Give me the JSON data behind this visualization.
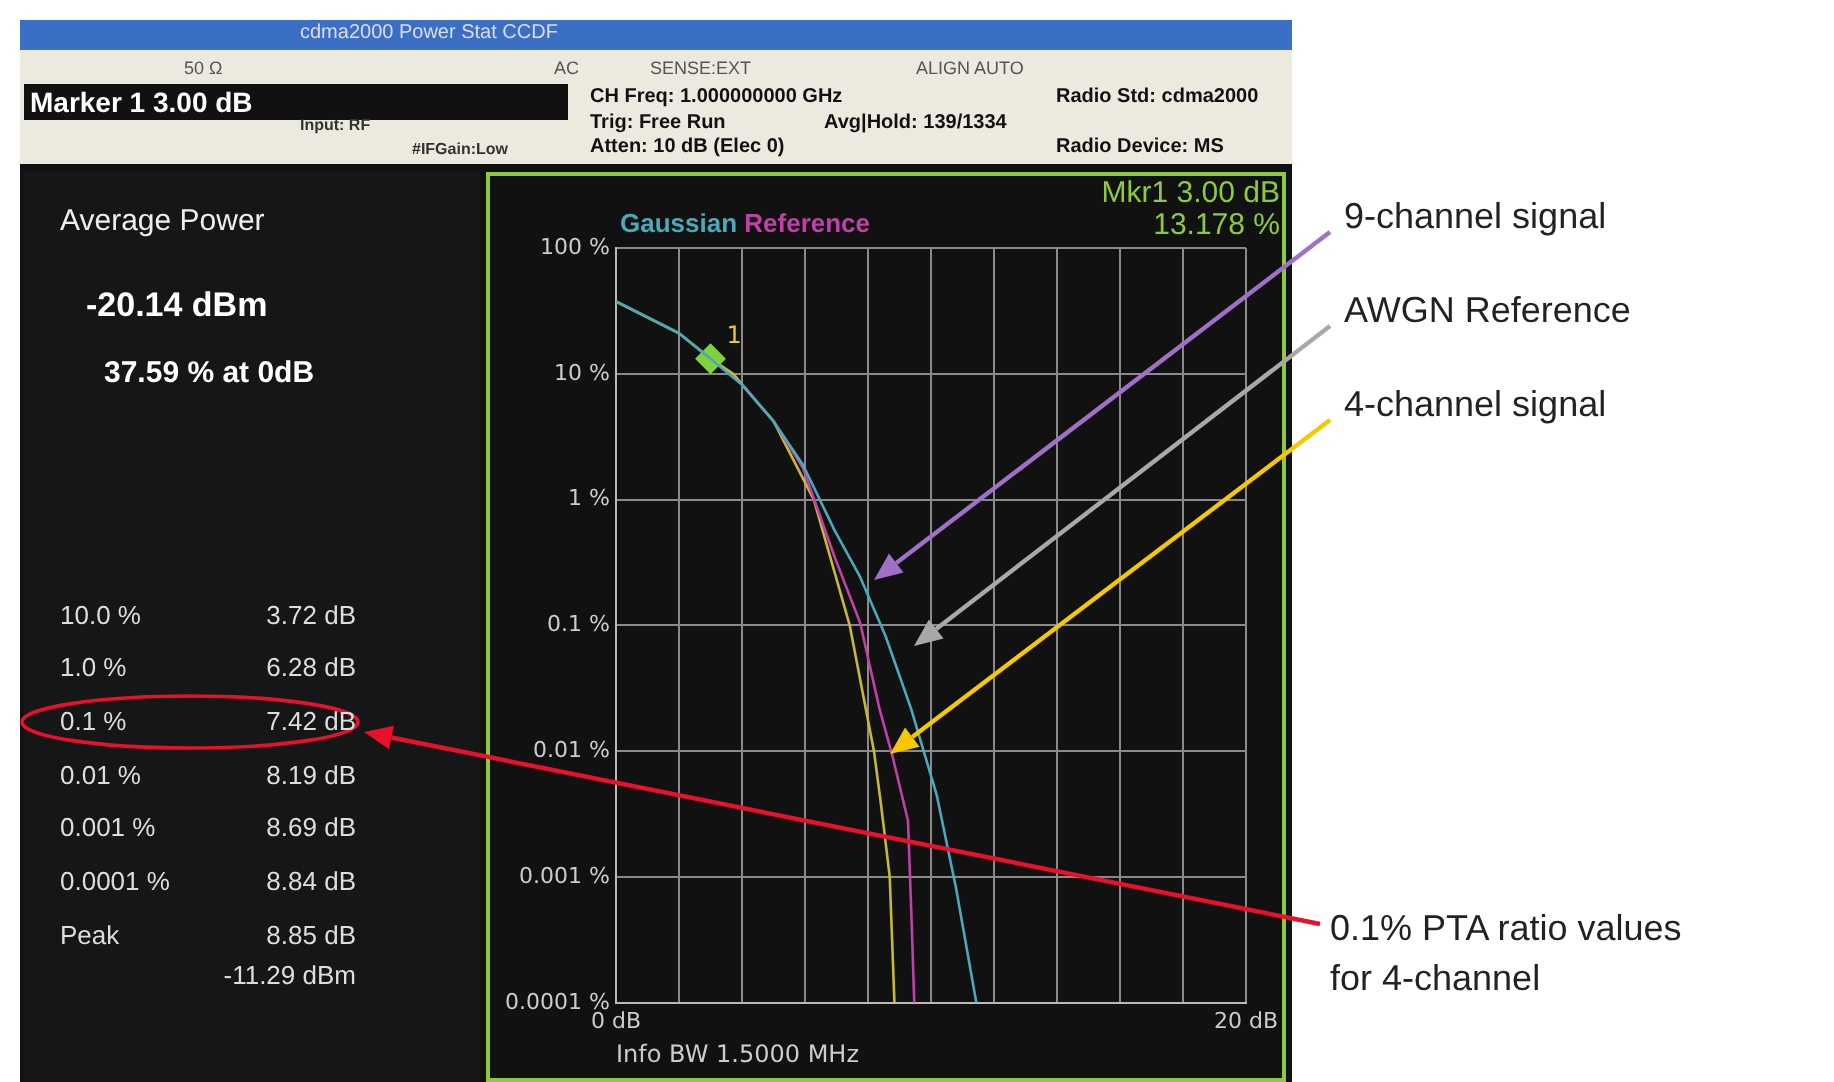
{
  "chart_data": {
    "type": "line",
    "title": "cdma2000  Power Stat CCDF",
    "xlabel": "Info BW 1.5000 MHz",
    "xlim": [
      0,
      20
    ],
    "xticks": [
      {
        "value": 0,
        "label": "0 dB"
      },
      {
        "value": 2,
        "label": null
      },
      {
        "value": 4,
        "label": null
      },
      {
        "value": 6,
        "label": null
      },
      {
        "value": 8,
        "label": null
      },
      {
        "value": 10,
        "label": null
      },
      {
        "value": 12,
        "label": null
      },
      {
        "value": 14,
        "label": null
      },
      {
        "value": 16,
        "label": null
      },
      {
        "value": 18,
        "label": null
      },
      {
        "value": 20,
        "label": "20 dB"
      }
    ],
    "ylim": [
      0.0001,
      100
    ],
    "yticks": [
      {
        "value": 0.0001,
        "label": "0.0001 %"
      },
      {
        "value": 0.001,
        "label": "0.001 %"
      },
      {
        "value": 0.01,
        "label": "0.01 %"
      },
      {
        "value": 0.1,
        "label": "0.1 %"
      },
      {
        "value": 1,
        "label": "1 %"
      },
      {
        "value": 10,
        "label": "10 %"
      },
      {
        "value": 100,
        "label": "100 %"
      }
    ],
    "log": "y",
    "grid": true,
    "legend": "top left",
    "marker": "none",
    "series": [
      {
        "name": "Gaussian",
        "color": "#4aaabb",
        "x": [
          0,
          2,
          3,
          4,
          5,
          5.93,
          6.94,
          7.75,
          8.56,
          9.37,
          10.18,
          10.79,
          11.44
        ],
        "values": [
          37.6,
          21,
          13.2,
          8.2,
          4.2,
          1.9,
          0.57,
          0.243,
          0.082,
          0.0217,
          0.0045,
          0.00083,
          0.0001
        ]
      },
      {
        "name": "Reference",
        "color": "#c040a8",
        "x": [
          4,
          5,
          5.93,
          6.94,
          7.75,
          8.36,
          8.77,
          9.27,
          9.37,
          9.47
        ],
        "values": [
          8.2,
          4.2,
          1.8,
          0.35,
          0.105,
          0.022,
          0.0093,
          0.0028,
          0.00057,
          0.0001
        ]
      },
      {
        "color": "#c8b838",
        "x": [
          0,
          2,
          3,
          3.72,
          5,
          6.28,
          7.42,
          8.19,
          8.4,
          8.5,
          8.69,
          8.84
        ],
        "values": [
          37.6,
          21,
          13.2,
          10,
          4.2,
          1,
          0.1,
          0.01,
          0.004,
          0.0025,
          0.001,
          0.0001
        ]
      },
      {
        "type": "scatter",
        "marker": "diamond",
        "color": "#7dd33a",
        "x": [
          3
        ],
        "values": [
          13.178
        ]
      }
    ],
    "annotations": [
      "50 Ω",
      "AC",
      "SENSE:EXT",
      "ALIGN AUTO",
      "Marker 1  3.00 dB",
      "Input: RF",
      "#IFGain:Low",
      "CH Freq: 1.000000000 GHz",
      "Trig: Free Run",
      "Avg|Hold: 139/1334",
      "Atten: 10 dB (Elec 0)",
      "Radio Std: cdma2000",
      "Radio Device: MS",
      "Average Power",
      "-20.14 dBm",
      "37.59 % at 0dB",
      "10.0 %",
      "3.72 dB",
      "1.0 %",
      "6.28 dB",
      "0.1 %",
      "7.42 dB",
      "0.01 %",
      "8.19 dB",
      "0.001 %",
      "8.69 dB",
      "0.0001 %",
      "8.84 dB",
      "Peak",
      "8.85 dB",
      "-11.29 dBm",
      "Mkr1 3.00 dB",
      "13.178 %",
      {
        "text": "1",
        "x": 3,
        "y": 13.178
      },
      "9-channel signal",
      "AWGN Reference",
      "4-channel signal",
      "0.1% PTA ratio values for 4-channel"
    ]
  }
}
